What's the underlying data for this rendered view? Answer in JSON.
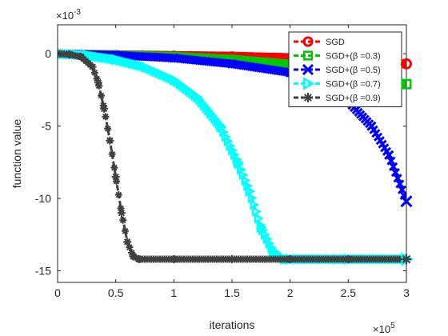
{
  "chart_data": {
    "type": "line",
    "title": "",
    "xlabel": "iterations",
    "ylabel": "function value",
    "x_exponent_label": "×10",
    "x_exponent": "5",
    "y_exponent_label": "×10",
    "y_exponent": "-3",
    "xlim": [
      0,
      3
    ],
    "ylim": [
      -15.8,
      2
    ],
    "xticks": [
      0,
      0.5,
      1,
      1.5,
      2,
      2.5,
      3
    ],
    "xtick_labels": [
      "0",
      "0.5",
      "1",
      "1.5",
      "2",
      "2.5",
      "3"
    ],
    "yticks": [
      0,
      -5,
      -10,
      -15
    ],
    "ytick_labels": [
      "0",
      "-5",
      "-10",
      "-15"
    ],
    "grid": false,
    "legend_position": "top-right",
    "series": [
      {
        "name": "SGD",
        "color": "#ff0000",
        "marker": "circle",
        "x": [
          0,
          0.5,
          1,
          1.5,
          2,
          2.5,
          3
        ],
        "y": [
          0,
          -0.05,
          -0.1,
          -0.15,
          -0.25,
          -0.4,
          -0.7
        ]
      },
      {
        "name": "SGD+(β =0.3)",
        "color": "#00c800",
        "marker": "square",
        "x": [
          0,
          0.5,
          1,
          1.5,
          2,
          2.5,
          3
        ],
        "y": [
          0,
          -0.05,
          -0.15,
          -0.35,
          -0.7,
          -1.3,
          -2.1
        ]
      },
      {
        "name": "SGD+(β =0.5)",
        "color": "#0000ff",
        "marker": "x",
        "x": [
          0,
          0.5,
          1,
          1.5,
          2,
          2.25,
          2.5,
          2.7,
          2.85,
          3
        ],
        "y": [
          0,
          -0.1,
          -0.3,
          -0.7,
          -1.3,
          -2.0,
          -3.3,
          -5.0,
          -7.0,
          -10.2
        ]
      },
      {
        "name": "SGD+(β =0.7)",
        "color": "#00ffff",
        "marker": "triangle-right",
        "x": [
          0,
          0.25,
          0.5,
          0.75,
          1,
          1.2,
          1.4,
          1.55,
          1.65,
          1.75,
          1.85,
          1.95,
          2.0,
          2.5,
          3
        ],
        "y": [
          0,
          -0.1,
          -0.4,
          -0.9,
          -1.8,
          -3.0,
          -5.0,
          -7.5,
          -9.5,
          -12.0,
          -13.6,
          -14.2,
          -14.2,
          -14.2,
          -14.2
        ]
      },
      {
        "name": "SGD+(β =0.9)",
        "color": "#404040",
        "marker": "asterisk",
        "x": [
          0,
          0.1,
          0.2,
          0.3,
          0.35,
          0.4,
          0.45,
          0.5,
          0.55,
          0.6,
          0.65,
          0.7,
          1,
          1.5,
          2,
          2.5,
          3
        ],
        "y": [
          0,
          -0.05,
          -0.2,
          -0.9,
          -2.0,
          -3.8,
          -6.0,
          -8.5,
          -11.0,
          -13.0,
          -14.0,
          -14.2,
          -14.2,
          -14.2,
          -14.2,
          -14.2,
          -14.2
        ]
      }
    ]
  }
}
